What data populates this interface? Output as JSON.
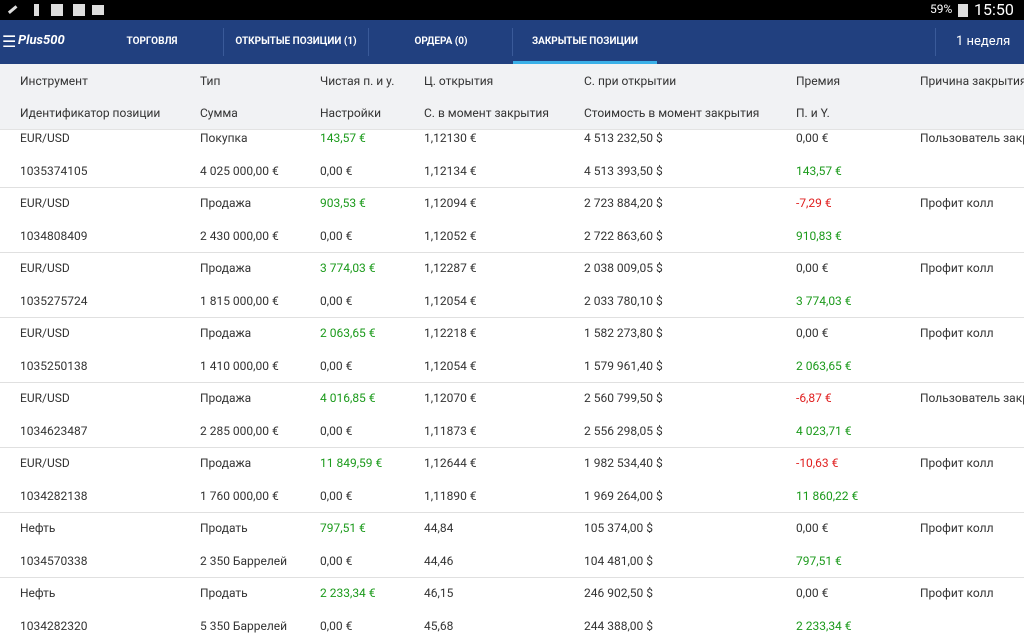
{
  "status_bar": {
    "battery": "59%",
    "time": "15:50"
  },
  "nav": {
    "logo": "Plus500",
    "tabs": [
      "ТОРГОВЛЯ",
      "ОТКРЫТЫЕ ПОЗИЦИИ (1)",
      "ОРДЕРА (0)",
      "ЗАКРЫТЫЕ ПОЗИЦИИ"
    ],
    "active_tab": 3,
    "period": "1 неделя"
  },
  "table": {
    "header_row1": [
      "Инструмент",
      "Тип",
      "Чистая п. и у.",
      "Ц. открытия",
      "С. при открытии",
      "Премия",
      "Причина закрытия"
    ],
    "header_row2": [
      "Идентификатор позиции",
      "Сумма",
      "Настройки",
      "С. в момент закрытия",
      "Стоимость в момент закрытия",
      "П. и Y."
    ],
    "records": [
      {
        "line1": [
          "EUR/USD",
          "Покупка",
          "143,57 €",
          "1,12130 €",
          "4 513 232,50 $",
          "0,00 €",
          "Пользователь закрыл"
        ],
        "line2": [
          "1035374105",
          "4 025 000,00 €",
          "0,00 €",
          "1,12134 €",
          "4 513 393,50 $",
          "143,57 €"
        ]
      },
      {
        "line1": [
          "EUR/USD",
          "Продажа",
          "903,53 €",
          "1,12094 €",
          "2 723 884,20 $",
          "-7,29 €",
          "Профит колл"
        ],
        "line2": [
          "1034808409",
          "2 430 000,00 €",
          "0,00 €",
          "1,12052 €",
          "2 722 863,60 $",
          "910,83 €"
        ]
      },
      {
        "line1": [
          "EUR/USD",
          "Продажа",
          "3 774,03 €",
          "1,12287 €",
          "2 038 009,05 $",
          "0,00 €",
          "Профит колл"
        ],
        "line2": [
          "1035275724",
          "1 815 000,00 €",
          "0,00 €",
          "1,12054 €",
          "2 033 780,10 $",
          "3 774,03 €"
        ]
      },
      {
        "line1": [
          "EUR/USD",
          "Продажа",
          "2 063,65 €",
          "1,12218 €",
          "1 582 273,80 $",
          "0,00 €",
          "Профит колл"
        ],
        "line2": [
          "1035250138",
          "1 410 000,00 €",
          "0,00 €",
          "1,12054 €",
          "1 579 961,40 $",
          "2 063,65 €"
        ]
      },
      {
        "line1": [
          "EUR/USD",
          "Продажа",
          "4 016,85 €",
          "1,12070 €",
          "2 560 799,50 $",
          "-6,87 €",
          "Пользователь закрыл"
        ],
        "line2": [
          "1034623487",
          "2 285 000,00 €",
          "0,00 €",
          "1,11873 €",
          "2 556 298,05 $",
          "4 023,71 €"
        ]
      },
      {
        "line1": [
          "EUR/USD",
          "Продажа",
          "11 849,59 €",
          "1,12644 €",
          "1 982 534,40 $",
          "-10,63 €",
          "Профит колл"
        ],
        "line2": [
          "1034282138",
          "1 760 000,00 €",
          "0,00 €",
          "1,11890 €",
          "1 969 264,00 $",
          "11 860,22 €"
        ]
      },
      {
        "line1": [
          "Нефть",
          "Продать",
          "797,51 €",
          "44,84",
          "105 374,00 $",
          "0,00 €",
          "Профит колл"
        ],
        "line2": [
          "1034570338",
          "2 350 Баррелей",
          "0,00 €",
          "44,46",
          "104 481,00 $",
          "797,51 €"
        ]
      },
      {
        "line1": [
          "Нефть",
          "Продать",
          "2 233,34 €",
          "46,15",
          "246 902,50 $",
          "0,00 €",
          "Профит колл"
        ],
        "line2": [
          "1034282320",
          "5 350 Баррелей",
          "0,00 €",
          "45,68",
          "244 388,00 $",
          "2 233,34 €"
        ]
      }
    ]
  }
}
